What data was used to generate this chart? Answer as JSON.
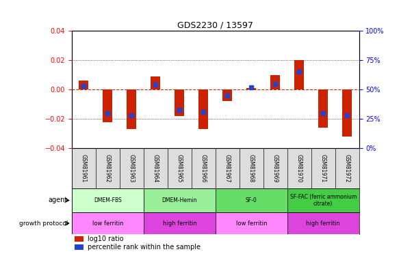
{
  "title": "GDS2230 / 13597",
  "samples": [
    "GSM81961",
    "GSM81962",
    "GSM81963",
    "GSM81964",
    "GSM81965",
    "GSM81966",
    "GSM81967",
    "GSM81968",
    "GSM81969",
    "GSM81970",
    "GSM81971",
    "GSM81972"
  ],
  "log10_ratio": [
    0.006,
    -0.022,
    -0.027,
    0.009,
    -0.018,
    -0.027,
    -0.008,
    0.001,
    0.01,
    0.02,
    -0.026,
    -0.032
  ],
  "percentile_rank": [
    53,
    30,
    28,
    54,
    33,
    31,
    45,
    52,
    55,
    65,
    30,
    28
  ],
  "ylim": [
    -0.04,
    0.04
  ],
  "yticks_left": [
    -0.04,
    -0.02,
    0.0,
    0.02,
    0.04
  ],
  "yticks_right": [
    0,
    25,
    50,
    75,
    100
  ],
  "agent_groups": [
    {
      "label": "DMEM-FBS",
      "start": 0,
      "end": 3,
      "color": "#ccffcc"
    },
    {
      "label": "DMEM-Hemin",
      "start": 3,
      "end": 6,
      "color": "#99ee99"
    },
    {
      "label": "SF-0",
      "start": 6,
      "end": 9,
      "color": "#66dd66"
    },
    {
      "label": "SF-FAC (ferric ammonium\ncitrate)",
      "start": 9,
      "end": 12,
      "color": "#44cc44"
    }
  ],
  "protocol_groups": [
    {
      "label": "low ferritin",
      "start": 0,
      "end": 3,
      "color": "#ff88ff"
    },
    {
      "label": "high ferritin",
      "start": 3,
      "end": 6,
      "color": "#dd44dd"
    },
    {
      "label": "low ferritin",
      "start": 6,
      "end": 9,
      "color": "#ff88ff"
    },
    {
      "label": "high ferritin",
      "start": 9,
      "end": 12,
      "color": "#dd44dd"
    }
  ],
  "bar_color": "#cc2200",
  "percentile_color": "#2244cc",
  "zero_line_color": "#cc2200",
  "background_color": "#ffffff",
  "legend_red": "log10 ratio",
  "legend_blue": "percentile rank within the sample",
  "bar_width": 0.4
}
